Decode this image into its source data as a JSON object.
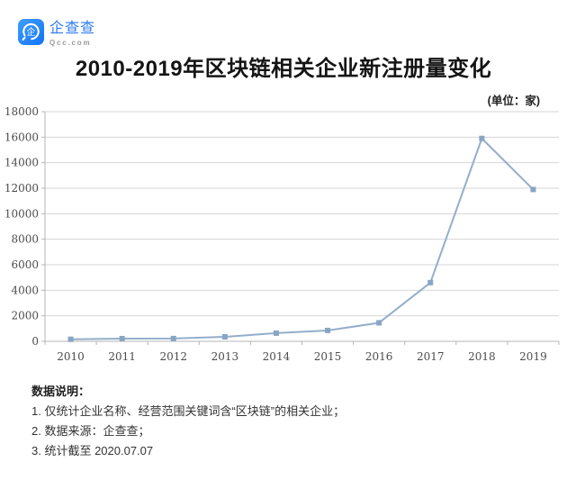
{
  "brand": {
    "logo_text": "企查查",
    "logo_sub": "Qcc.com",
    "brand_blue": "#2E7BF0"
  },
  "header": {
    "title": "2010-2019年区块链相关企业新注册量变化",
    "unit_label": "(单位：家)"
  },
  "chart_data": {
    "type": "line",
    "title": "2010-2019年区块链相关企业新注册量变化",
    "unit": "家",
    "categories": [
      "2010",
      "2011",
      "2012",
      "2013",
      "2014",
      "2015",
      "2016",
      "2017",
      "2018",
      "2019"
    ],
    "values": [
      160,
      210,
      220,
      350,
      640,
      850,
      1450,
      4600,
      15900,
      11900
    ],
    "xlabel": "",
    "ylabel": "",
    "ylim": [
      0,
      18000
    ],
    "ytick_step": 2000,
    "grid": true,
    "legend": "none",
    "marker": "square",
    "line_color": "#93AECB",
    "marker_color": "#89A5C4",
    "grid_color": "#D6D6D6",
    "axis_color": "#B5B5B5",
    "tick_text_color": "#4C4C4C"
  },
  "footnotes": {
    "heading": "数据说明：",
    "items": [
      "1. 仅统计企业名称、经营范围关键词含“区块链”的相关企业；",
      "2. 数据来源：企查查；",
      "3. 统计截至 2020.07.07"
    ]
  }
}
